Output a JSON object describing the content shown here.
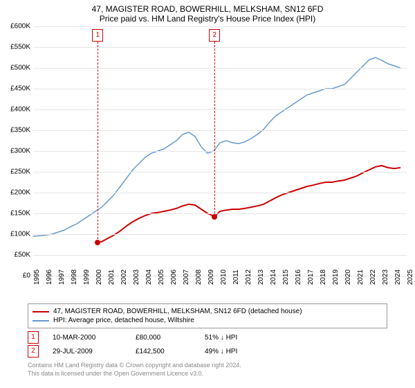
{
  "title": "47, MAGISTER ROAD, BOWERHILL, MELKSHAM, SN12 6FD",
  "subtitle": "Price paid vs. HM Land Registry's House Price Index (HPI)",
  "chart": {
    "type": "line",
    "background_color": "#ffffff",
    "grid_color": "#e5e5e5",
    "ylim": [
      0,
      600000
    ],
    "ytick_step": 50000,
    "y_labels": [
      "£0",
      "£50K",
      "£100K",
      "£150K",
      "£200K",
      "£250K",
      "£300K",
      "£350K",
      "£400K",
      "£450K",
      "£500K",
      "£550K",
      "£600K"
    ],
    "xlim": [
      1995,
      2025
    ],
    "x_labels": [
      "1995",
      "1996",
      "1997",
      "1998",
      "1999",
      "2000",
      "2001",
      "2002",
      "2003",
      "2004",
      "2005",
      "2006",
      "2007",
      "2008",
      "2009",
      "2010",
      "2011",
      "2012",
      "2013",
      "2014",
      "2015",
      "2016",
      "2017",
      "2018",
      "2019",
      "2020",
      "2021",
      "2022",
      "2023",
      "2024",
      "2025"
    ],
    "series": [
      {
        "name": "property",
        "color": "#cc0000",
        "line_width": 2,
        "points": [
          [
            2000.19,
            80000
          ],
          [
            2000.5,
            82000
          ],
          [
            2001,
            90000
          ],
          [
            2001.5,
            98000
          ],
          [
            2002,
            108000
          ],
          [
            2002.5,
            120000
          ],
          [
            2003,
            130000
          ],
          [
            2003.5,
            138000
          ],
          [
            2004,
            145000
          ],
          [
            2004.5,
            150000
          ],
          [
            2005,
            152000
          ],
          [
            2005.5,
            155000
          ],
          [
            2006,
            158000
          ],
          [
            2006.5,
            162000
          ],
          [
            2007,
            168000
          ],
          [
            2007.5,
            172000
          ],
          [
            2008,
            170000
          ],
          [
            2008.5,
            160000
          ],
          [
            2009,
            150000
          ],
          [
            2009.57,
            142500
          ],
          [
            2010,
            155000
          ],
          [
            2010.5,
            158000
          ],
          [
            2011,
            160000
          ],
          [
            2011.5,
            160000
          ],
          [
            2012,
            162000
          ],
          [
            2012.5,
            165000
          ],
          [
            2013,
            168000
          ],
          [
            2013.5,
            172000
          ],
          [
            2014,
            180000
          ],
          [
            2014.5,
            188000
          ],
          [
            2015,
            195000
          ],
          [
            2015.5,
            200000
          ],
          [
            2016,
            205000
          ],
          [
            2016.5,
            210000
          ],
          [
            2017,
            215000
          ],
          [
            2017.5,
            218000
          ],
          [
            2018,
            222000
          ],
          [
            2018.5,
            225000
          ],
          [
            2019,
            225000
          ],
          [
            2019.5,
            228000
          ],
          [
            2020,
            230000
          ],
          [
            2020.5,
            235000
          ],
          [
            2021,
            240000
          ],
          [
            2021.5,
            248000
          ],
          [
            2022,
            255000
          ],
          [
            2022.5,
            262000
          ],
          [
            2023,
            265000
          ],
          [
            2023.5,
            260000
          ],
          [
            2024,
            258000
          ],
          [
            2024.5,
            260000
          ]
        ]
      },
      {
        "name": "hpi",
        "color": "#6699cc",
        "line_width": 1.5,
        "points": [
          [
            1995,
            95000
          ],
          [
            1995.5,
            96000
          ],
          [
            1996,
            98000
          ],
          [
            1996.5,
            100000
          ],
          [
            1997,
            105000
          ],
          [
            1997.5,
            110000
          ],
          [
            1998,
            118000
          ],
          [
            1998.5,
            125000
          ],
          [
            1999,
            135000
          ],
          [
            1999.5,
            145000
          ],
          [
            2000,
            155000
          ],
          [
            2000.5,
            165000
          ],
          [
            2001,
            180000
          ],
          [
            2001.5,
            195000
          ],
          [
            2002,
            215000
          ],
          [
            2002.5,
            235000
          ],
          [
            2003,
            255000
          ],
          [
            2003.5,
            270000
          ],
          [
            2004,
            285000
          ],
          [
            2004.5,
            295000
          ],
          [
            2005,
            300000
          ],
          [
            2005.5,
            305000
          ],
          [
            2006,
            315000
          ],
          [
            2006.5,
            325000
          ],
          [
            2007,
            340000
          ],
          [
            2007.5,
            345000
          ],
          [
            2008,
            335000
          ],
          [
            2008.5,
            310000
          ],
          [
            2009,
            295000
          ],
          [
            2009.5,
            300000
          ],
          [
            2010,
            320000
          ],
          [
            2010.5,
            325000
          ],
          [
            2011,
            320000
          ],
          [
            2011.5,
            318000
          ],
          [
            2012,
            322000
          ],
          [
            2012.5,
            330000
          ],
          [
            2013,
            340000
          ],
          [
            2013.5,
            352000
          ],
          [
            2014,
            370000
          ],
          [
            2014.5,
            385000
          ],
          [
            2015,
            395000
          ],
          [
            2015.5,
            405000
          ],
          [
            2016,
            415000
          ],
          [
            2016.5,
            425000
          ],
          [
            2017,
            435000
          ],
          [
            2017.5,
            440000
          ],
          [
            2018,
            445000
          ],
          [
            2018.5,
            450000
          ],
          [
            2019,
            450000
          ],
          [
            2019.5,
            455000
          ],
          [
            2020,
            460000
          ],
          [
            2020.5,
            475000
          ],
          [
            2021,
            490000
          ],
          [
            2021.5,
            505000
          ],
          [
            2022,
            520000
          ],
          [
            2022.5,
            525000
          ],
          [
            2023,
            518000
          ],
          [
            2023.5,
            510000
          ],
          [
            2024,
            505000
          ],
          [
            2024.5,
            500000
          ]
        ]
      }
    ],
    "markers": [
      {
        "num": "1",
        "date": "10-MAR-2000",
        "price": "£80,000",
        "pct": "51% ↓ HPI",
        "x": 2000.19,
        "y": 80000
      },
      {
        "num": "2",
        "date": "29-JUL-2009",
        "price": "£142,500",
        "pct": "49% ↓ HPI",
        "x": 2009.57,
        "y": 142500
      }
    ]
  },
  "legend": {
    "items": [
      {
        "color": "#cc0000",
        "label": "47, MAGISTER ROAD, BOWERHILL, MELKSHAM, SN12 6FD (detached house)"
      },
      {
        "color": "#6699cc",
        "label": "HPI: Average price, detached house, Wiltshire"
      }
    ]
  },
  "footnote_line1": "Contains HM Land Registry data © Crown copyright and database right 2024.",
  "footnote_line2": "This data is licensed under the Open Government Licence v3.0."
}
